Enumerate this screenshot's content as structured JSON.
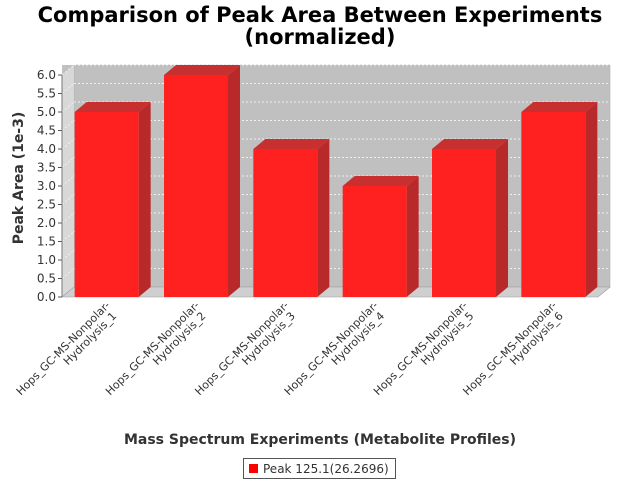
{
  "chart_data": {
    "type": "bar",
    "title_line1": "Comparison of Peak Area Between Experiments",
    "title_line2": "(normalized)",
    "xlabel": "Mass Spectrum Experiments (Metabolite Profiles)",
    "ylabel": "Peak Area (1e-3)",
    "categories": [
      [
        "Hops_GC-MS-Nonpolar-",
        "Hydrolysis_1"
      ],
      [
        "Hops_GC-MS-Nonpolar-",
        "Hydrolysis_2"
      ],
      [
        "Hops_GC-MS-Nonpolar-",
        "Hydrolysis_3"
      ],
      [
        "Hops_GC-MS-Nonpolar-",
        "Hydrolysis_4"
      ],
      [
        "Hops_GC-MS-Nonpolar-",
        "Hydrolysis_5"
      ],
      [
        "Hops_GC-MS-Nonpolar-",
        "Hydrolysis_6"
      ]
    ],
    "series": [
      {
        "name": "Peak 125.1(26.2696)",
        "values": [
          5.0,
          6.0,
          4.0,
          3.0,
          4.0,
          5.0
        ]
      }
    ],
    "yticks": [
      "0.0",
      "0.5",
      "1.0",
      "1.5",
      "2.0",
      "2.5",
      "3.0",
      "3.5",
      "4.0",
      "4.5",
      "5.0",
      "5.5",
      "6.0"
    ],
    "ylim": [
      0,
      6.0
    ],
    "grid": true,
    "legend_position": "bottom",
    "colors": {
      "bar": "#ff2020",
      "bar_side": "#b82a2a",
      "bar_top": "#c83030",
      "plot_bg": "#c0c0c0",
      "floor": "#cfcfcf"
    }
  }
}
